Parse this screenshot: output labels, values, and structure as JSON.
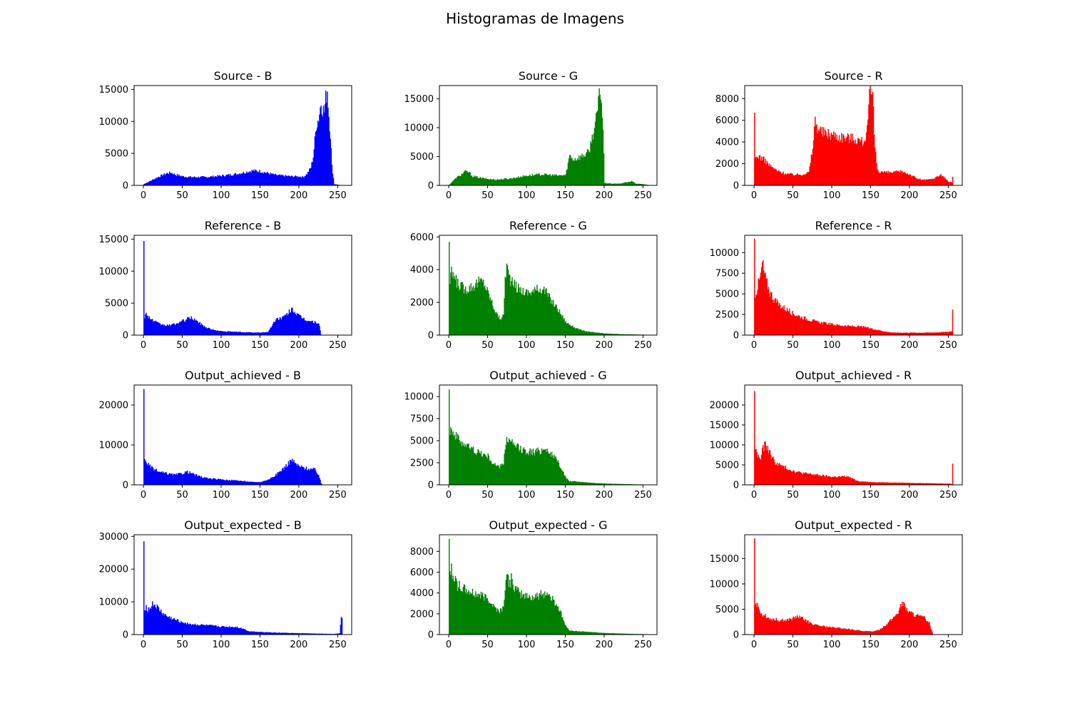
{
  "figure": {
    "title": "Histogramas de Imagens"
  },
  "chart_data": [
    {
      "type": "bar",
      "title": "Source - B",
      "color": "#0000ff",
      "xlim": [
        -12,
        268
      ],
      "ylim": [
        0,
        15600
      ],
      "xticks": [
        0,
        50,
        100,
        150,
        200,
        250
      ],
      "yticks": [
        0,
        5000,
        10000,
        15000
      ],
      "xlabel": "",
      "ylabel": "",
      "bins": [
        0,
        5,
        10,
        20,
        30,
        35,
        40,
        50,
        60,
        80,
        100,
        120,
        140,
        150,
        170,
        190,
        200,
        205,
        210,
        215,
        218,
        220,
        222,
        225,
        228,
        230,
        232,
        234,
        236,
        238,
        240,
        242,
        245,
        250,
        255
      ],
      "values": [
        200,
        500,
        800,
        1400,
        1900,
        2000,
        1700,
        1400,
        1300,
        1300,
        1500,
        1800,
        2300,
        2200,
        1600,
        1400,
        1400,
        1300,
        1800,
        2800,
        4500,
        7000,
        9500,
        10500,
        13000,
        12000,
        11500,
        13500,
        15000,
        11000,
        8000,
        3000,
        200,
        100,
        0
      ],
      "spikes": []
    },
    {
      "type": "bar",
      "title": "Source - G",
      "color": "#008000",
      "xlim": [
        -12,
        268
      ],
      "ylim": [
        0,
        17300
      ],
      "xticks": [
        0,
        50,
        100,
        150,
        200,
        250
      ],
      "yticks": [
        0,
        5000,
        10000,
        15000
      ],
      "xlabel": "",
      "ylabel": "",
      "bins": [
        0,
        5,
        10,
        15,
        20,
        25,
        30,
        40,
        50,
        60,
        80,
        100,
        120,
        140,
        150,
        155,
        160,
        170,
        180,
        185,
        188,
        190,
        192,
        195,
        198,
        200,
        210,
        220,
        230,
        236,
        240,
        250,
        255
      ],
      "values": [
        100,
        800,
        1400,
        1800,
        2400,
        2300,
        1600,
        1300,
        1100,
        1000,
        1200,
        1700,
        1900,
        1700,
        1800,
        5200,
        4500,
        5000,
        5800,
        9000,
        10500,
        12000,
        14500,
        16500,
        10000,
        400,
        300,
        300,
        600,
        700,
        300,
        200,
        100
      ],
      "spikes": []
    },
    {
      "type": "bar",
      "title": "Source - R",
      "color": "#ff0000",
      "xlim": [
        -12,
        268
      ],
      "ylim": [
        0,
        9200
      ],
      "xticks": [
        0,
        50,
        100,
        150,
        200,
        250
      ],
      "yticks": [
        0,
        2000,
        4000,
        6000,
        8000
      ],
      "xlabel": "",
      "ylabel": "",
      "bins": [
        0,
        3,
        5,
        10,
        15,
        20,
        30,
        40,
        50,
        60,
        70,
        75,
        78,
        80,
        85,
        90,
        100,
        110,
        120,
        130,
        140,
        145,
        148,
        150,
        152,
        155,
        158,
        160,
        170,
        180,
        190,
        200,
        210,
        220,
        230,
        240,
        245,
        250,
        254,
        255
      ],
      "values": [
        2500,
        2600,
        2700,
        2500,
        2200,
        1800,
        1300,
        1100,
        1000,
        1000,
        1200,
        3500,
        6000,
        5500,
        5000,
        4800,
        4700,
        4500,
        4400,
        4300,
        4000,
        5000,
        8000,
        8500,
        8000,
        3500,
        1500,
        1300,
        1200,
        1200,
        1300,
        1000,
        600,
        500,
        600,
        1000,
        700,
        300,
        300,
        800
      ],
      "spikes": [
        {
          "x": 0,
          "value": 6700
        },
        {
          "x": 255,
          "value": 800
        }
      ]
    },
    {
      "type": "bar",
      "title": "Reference - B",
      "color": "#0000ff",
      "xlim": [
        -12,
        268
      ],
      "ylim": [
        0,
        15600
      ],
      "xticks": [
        0,
        50,
        100,
        150,
        200,
        250
      ],
      "yticks": [
        0,
        5000,
        10000,
        15000
      ],
      "xlabel": "",
      "ylabel": "",
      "bins": [
        0,
        3,
        5,
        10,
        20,
        30,
        40,
        50,
        55,
        60,
        65,
        70,
        75,
        80,
        90,
        100,
        120,
        140,
        150,
        160,
        165,
        170,
        180,
        185,
        190,
        195,
        200,
        210,
        220,
        225,
        228,
        230,
        240,
        250,
        255
      ],
      "values": [
        2700,
        3300,
        3100,
        2400,
        1700,
        1500,
        1700,
        2200,
        2500,
        2700,
        2500,
        2000,
        1600,
        1200,
        800,
        600,
        500,
        400,
        400,
        500,
        1500,
        2500,
        2800,
        3300,
        4200,
        3500,
        2900,
        2300,
        2000,
        1900,
        100,
        0,
        0,
        0,
        0
      ],
      "spikes": [
        {
          "x": 0,
          "value": 14700
        }
      ]
    },
    {
      "type": "bar",
      "title": "Reference - G",
      "color": "#008000",
      "xlim": [
        -12,
        268
      ],
      "ylim": [
        0,
        6100
      ],
      "xticks": [
        0,
        50,
        100,
        150,
        200,
        250
      ],
      "yticks": [
        0,
        2000,
        4000,
        6000
      ],
      "xlabel": "",
      "ylabel": "",
      "bins": [
        0,
        3,
        5,
        10,
        20,
        30,
        40,
        45,
        50,
        55,
        60,
        65,
        70,
        72,
        74,
        76,
        80,
        90,
        100,
        110,
        120,
        125,
        130,
        140,
        150,
        160,
        170,
        180,
        200,
        220,
        240,
        255
      ],
      "values": [
        2700,
        3800,
        3700,
        3200,
        2800,
        3000,
        3300,
        3200,
        2600,
        2000,
        1400,
        1000,
        1200,
        3500,
        4300,
        3800,
        3200,
        2800,
        2600,
        2700,
        2900,
        2600,
        2200,
        1600,
        800,
        500,
        300,
        200,
        100,
        60,
        40,
        20
      ],
      "spikes": [
        {
          "x": 0,
          "value": 5700
        }
      ]
    },
    {
      "type": "bar",
      "title": "Reference - R",
      "color": "#ff0000",
      "xlim": [
        -12,
        268
      ],
      "ylim": [
        0,
        12100
      ],
      "xticks": [
        0,
        50,
        100,
        150,
        200,
        250
      ],
      "yticks": [
        0,
        2500,
        5000,
        7500,
        10000
      ],
      "xlabel": "",
      "ylabel": "",
      "bins": [
        0,
        3,
        5,
        8,
        10,
        12,
        15,
        20,
        25,
        30,
        40,
        50,
        60,
        70,
        80,
        100,
        120,
        140,
        150,
        160,
        170,
        180,
        200,
        220,
        240,
        250,
        254,
        255
      ],
      "values": [
        4800,
        5500,
        6200,
        7200,
        8800,
        7800,
        6500,
        5200,
        4400,
        3800,
        3200,
        2600,
        2200,
        1900,
        1600,
        1300,
        1100,
        1000,
        800,
        600,
        400,
        300,
        300,
        300,
        350,
        400,
        500,
        600
      ],
      "spikes": [
        {
          "x": 0,
          "value": 11700
        },
        {
          "x": 255,
          "value": 3100
        }
      ]
    },
    {
      "type": "bar",
      "title": "Output_achieved - B",
      "color": "#0000ff",
      "xlim": [
        -12,
        268
      ],
      "ylim": [
        0,
        25000
      ],
      "xticks": [
        0,
        50,
        100,
        150,
        200,
        250
      ],
      "yticks": [
        0,
        10000,
        20000
      ],
      "xlabel": "",
      "ylabel": "",
      "bins": [
        0,
        3,
        5,
        10,
        20,
        30,
        40,
        50,
        55,
        60,
        70,
        80,
        100,
        120,
        140,
        150,
        160,
        170,
        180,
        185,
        190,
        195,
        200,
        210,
        220,
        225,
        228,
        230,
        255
      ],
      "values": [
        6500,
        6000,
        5200,
        4200,
        3200,
        2800,
        2500,
        2900,
        3300,
        3000,
        2200,
        1700,
        1300,
        1100,
        700,
        700,
        1300,
        2500,
        4200,
        5200,
        6300,
        5300,
        4600,
        4100,
        3800,
        2500,
        400,
        0,
        0
      ],
      "spikes": [
        {
          "x": 0,
          "value": 24000
        }
      ]
    },
    {
      "type": "bar",
      "title": "Output_achieved - G",
      "color": "#008000",
      "xlim": [
        -12,
        268
      ],
      "ylim": [
        0,
        11300
      ],
      "xticks": [
        0,
        50,
        100,
        150,
        200,
        250
      ],
      "yticks": [
        0,
        2500,
        5000,
        7500,
        10000
      ],
      "xlabel": "",
      "ylabel": "",
      "bins": [
        0,
        3,
        5,
        10,
        20,
        30,
        40,
        50,
        55,
        60,
        65,
        70,
        72,
        74,
        76,
        80,
        90,
        100,
        110,
        120,
        125,
        130,
        140,
        145,
        150,
        155,
        160,
        180,
        200,
        220,
        240,
        255
      ],
      "values": [
        6200,
        6400,
        6000,
        5300,
        4600,
        4000,
        3600,
        3200,
        2600,
        2200,
        2000,
        2500,
        4200,
        5300,
        5000,
        4700,
        4100,
        3800,
        3700,
        4000,
        4100,
        3600,
        2600,
        1800,
        800,
        400,
        400,
        250,
        150,
        100,
        60,
        40
      ],
      "spikes": [
        {
          "x": 0,
          "value": 10800
        }
      ]
    },
    {
      "type": "bar",
      "title": "Output_achieved - R",
      "color": "#ff0000",
      "xlim": [
        -12,
        268
      ],
      "ylim": [
        0,
        25000
      ],
      "xticks": [
        0,
        50,
        100,
        150,
        200,
        250
      ],
      "yticks": [
        0,
        5000,
        10000,
        15000,
        20000
      ],
      "xlabel": "",
      "ylabel": "",
      "bins": [
        0,
        3,
        5,
        8,
        10,
        12,
        15,
        20,
        25,
        30,
        40,
        50,
        60,
        80,
        100,
        120,
        130,
        135,
        150,
        170,
        200,
        220,
        240,
        250,
        254,
        255
      ],
      "values": [
        9000,
        8000,
        7000,
        6500,
        8500,
        9500,
        10000,
        8000,
        6000,
        5200,
        4300,
        3500,
        3000,
        2500,
        2000,
        2100,
        1200,
        900,
        700,
        600,
        500,
        400,
        350,
        300,
        250,
        300
      ],
      "spikes": [
        {
          "x": 0,
          "value": 23500
        },
        {
          "x": 255,
          "value": 5300
        }
      ]
    },
    {
      "type": "bar",
      "title": "Output_expected - B",
      "color": "#0000ff",
      "xlim": [
        -12,
        268
      ],
      "ylim": [
        0,
        30500
      ],
      "xticks": [
        0,
        50,
        100,
        150,
        200,
        250
      ],
      "yticks": [
        0,
        10000,
        20000,
        30000
      ],
      "xlabel": "",
      "ylabel": "",
      "bins": [
        0,
        3,
        5,
        8,
        10,
        12,
        15,
        20,
        25,
        30,
        40,
        50,
        60,
        80,
        100,
        120,
        130,
        135,
        150,
        170,
        200,
        220,
        240,
        245,
        250,
        252,
        254,
        255
      ],
      "values": [
        8000,
        8500,
        7500,
        8000,
        9000,
        9200,
        8800,
        7500,
        6300,
        5500,
        4500,
        3800,
        3200,
        2800,
        2400,
        2300,
        1600,
        1000,
        800,
        600,
        400,
        300,
        200,
        200,
        300,
        400,
        5500,
        5000
      ],
      "spikes": [
        {
          "x": 0,
          "value": 28500
        }
      ]
    },
    {
      "type": "bar",
      "title": "Output_expected - G",
      "color": "#008000",
      "xlim": [
        -12,
        268
      ],
      "ylim": [
        0,
        9600
      ],
      "xticks": [
        0,
        50,
        100,
        150,
        200,
        250
      ],
      "yticks": [
        0,
        2000,
        4000,
        6000,
        8000
      ],
      "xlabel": "",
      "ylabel": "",
      "bins": [
        0,
        3,
        5,
        10,
        20,
        30,
        40,
        50,
        55,
        60,
        65,
        70,
        72,
        74,
        76,
        80,
        90,
        100,
        110,
        120,
        125,
        130,
        140,
        145,
        150,
        155,
        160,
        180,
        200,
        220,
        240,
        255
      ],
      "values": [
        5800,
        6200,
        5800,
        4800,
        4300,
        4000,
        3800,
        3500,
        3000,
        2500,
        2300,
        2600,
        4800,
        5600,
        5200,
        4900,
        4000,
        3700,
        3600,
        3900,
        4000,
        3700,
        2700,
        1800,
        800,
        400,
        350,
        250,
        150,
        100,
        60,
        40
      ],
      "spikes": [
        {
          "x": 0,
          "value": 9200
        },
        {
          "x": 80,
          "value": 5900
        }
      ]
    },
    {
      "type": "bar",
      "title": "Output_expected - R",
      "color": "#ff0000",
      "xlim": [
        -12,
        268
      ],
      "ylim": [
        0,
        19700
      ],
      "xticks": [
        0,
        50,
        100,
        150,
        200,
        250
      ],
      "yticks": [
        0,
        5000,
        10000,
        15000
      ],
      "xlabel": "",
      "ylabel": "",
      "bins": [
        0,
        3,
        5,
        10,
        20,
        30,
        40,
        50,
        55,
        60,
        65,
        70,
        80,
        100,
        120,
        140,
        150,
        160,
        170,
        180,
        185,
        190,
        195,
        200,
        210,
        220,
        225,
        228,
        230,
        255
      ],
      "values": [
        6800,
        6000,
        5200,
        4000,
        3200,
        2900,
        2800,
        3200,
        3500,
        3300,
        2900,
        2400,
        1800,
        1400,
        1100,
        700,
        600,
        900,
        2000,
        3500,
        4500,
        6300,
        5200,
        4300,
        3700,
        3200,
        2300,
        800,
        0,
        0
      ],
      "spikes": [
        {
          "x": 0,
          "value": 19000
        }
      ]
    }
  ]
}
